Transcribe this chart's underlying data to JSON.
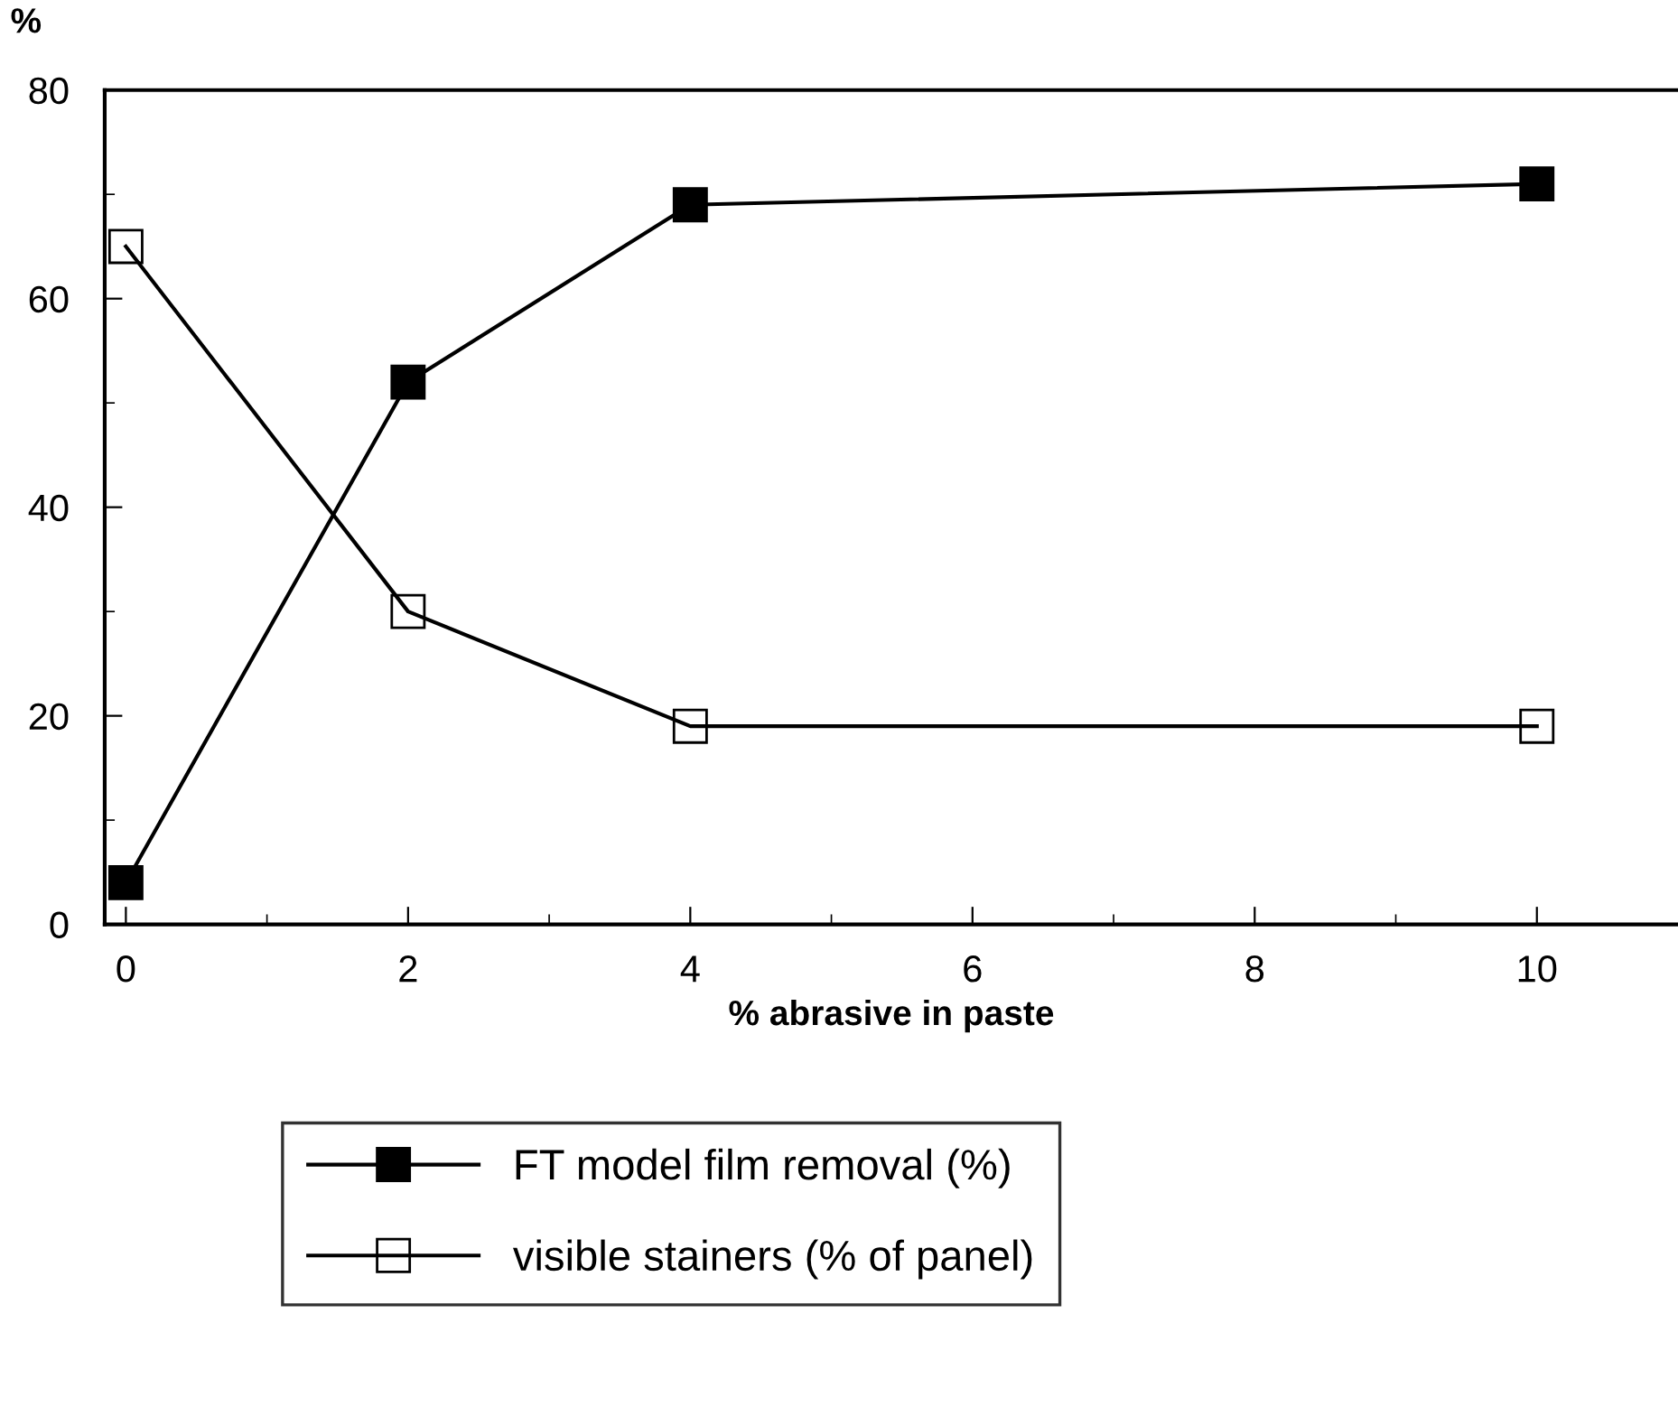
{
  "chart_data": {
    "type": "line",
    "xlabel": "% abrasive in paste",
    "ylabel": "%",
    "x": [
      0,
      2,
      4,
      10
    ],
    "series": [
      {
        "name": "FT model film removal (%)",
        "color": "#000000",
        "values": [
          4,
          52,
          69,
          71
        ],
        "marker": "square"
      },
      {
        "name": "visible stainers (% of panel)",
        "color": "#000000",
        "values": [
          65,
          30,
          19,
          19
        ],
        "marker": "square"
      }
    ],
    "xlim": [
      -0.15,
      11
    ],
    "xticks": [
      0,
      2,
      4,
      6,
      8,
      10
    ],
    "ylim": [
      0,
      80
    ],
    "yticks": [
      0,
      20,
      40,
      60,
      80
    ],
    "grid": false,
    "legend": "bottom",
    "line_style": "solid"
  }
}
